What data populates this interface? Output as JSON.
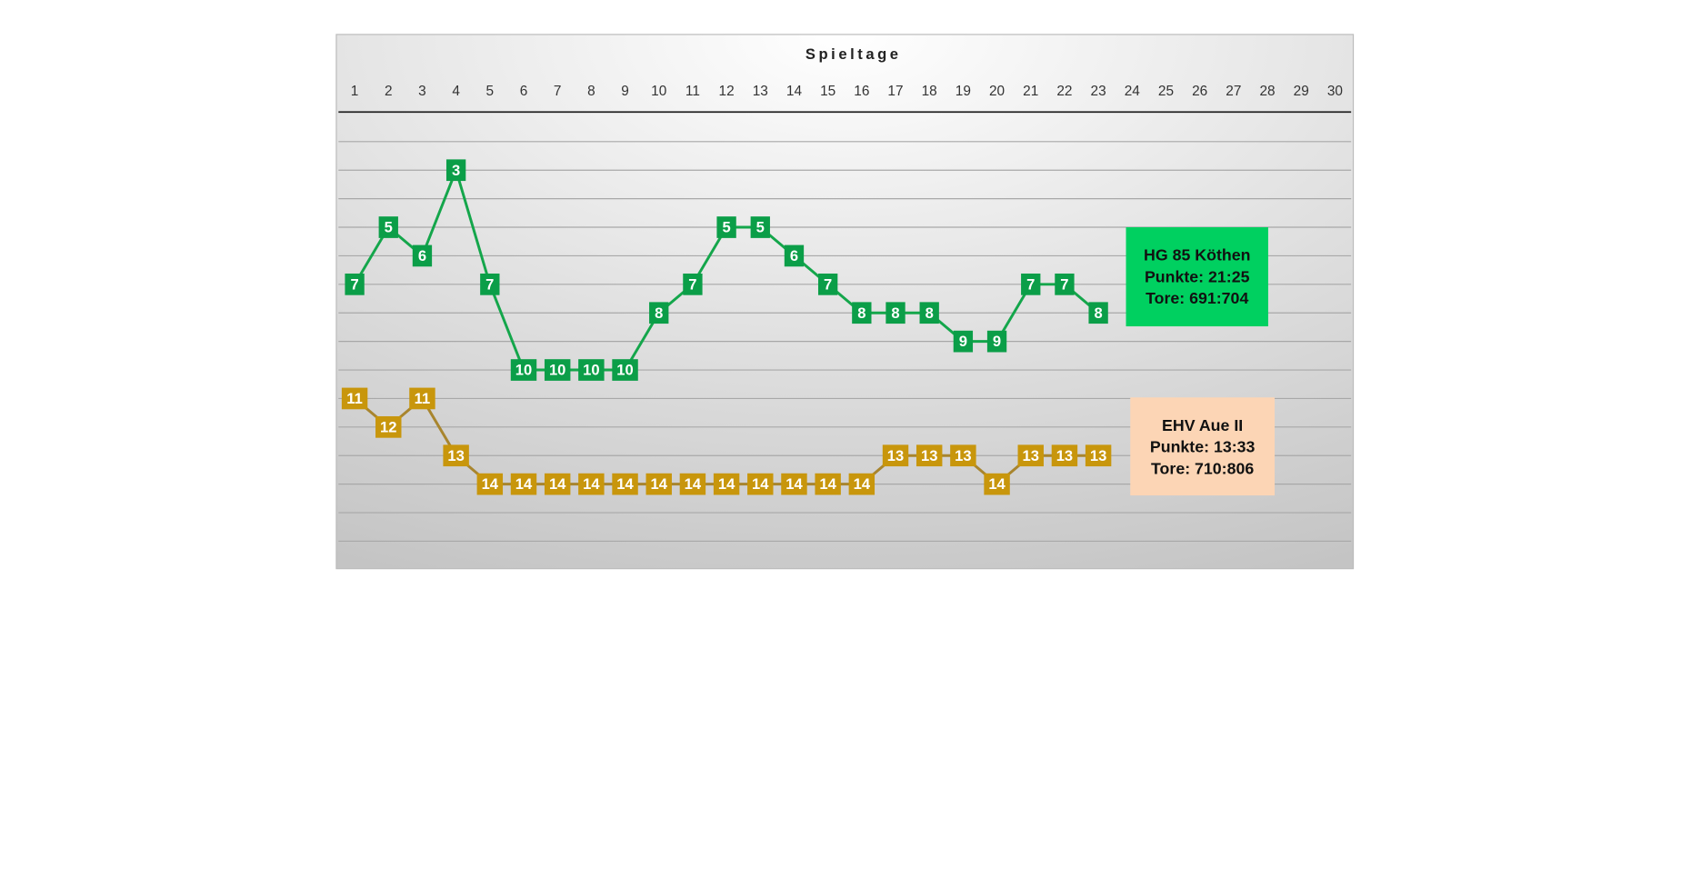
{
  "chart_data": {
    "type": "line",
    "title": "Spieltage",
    "categories": [
      "1",
      "2",
      "3",
      "4",
      "5",
      "6",
      "7",
      "8",
      "9",
      "10",
      "11",
      "12",
      "13",
      "14",
      "15",
      "16",
      "17",
      "18",
      "19",
      "20",
      "21",
      "22",
      "23",
      "24",
      "25",
      "26",
      "27",
      "28",
      "29",
      "30"
    ],
    "ylim": [
      1,
      17
    ],
    "y_inverted": true,
    "yticks": [
      2,
      3,
      4,
      5,
      6,
      7,
      8,
      9,
      10,
      11,
      12,
      13,
      14,
      15,
      16
    ],
    "grid": true,
    "series": [
      {
        "name": "HG 85 Köthen",
        "color": "#14a64b",
        "marker_color": "#0b9e48",
        "box_color": "#00d060",
        "lines": [
          "Punkte: 21:25",
          "Tore: 691:704"
        ],
        "values": [
          7,
          5,
          6,
          3,
          7,
          10,
          10,
          10,
          10,
          8,
          7,
          5,
          5,
          6,
          7,
          8,
          8,
          8,
          9,
          9,
          7,
          7,
          8,
          null,
          null,
          null,
          null,
          null,
          null,
          null
        ]
      },
      {
        "name": "EHV Aue II",
        "color": "#a8852e",
        "marker_color": "#c8960c",
        "box_color": "#fcd5b5",
        "lines": [
          "Punkte: 13:33",
          "Tore: 710:806"
        ],
        "values": [
          11,
          12,
          11,
          13,
          14,
          14,
          14,
          14,
          14,
          14,
          14,
          14,
          14,
          14,
          14,
          14,
          13,
          13,
          13,
          14,
          13,
          13,
          13,
          null,
          null,
          null,
          null,
          null,
          null,
          null
        ]
      }
    ]
  }
}
